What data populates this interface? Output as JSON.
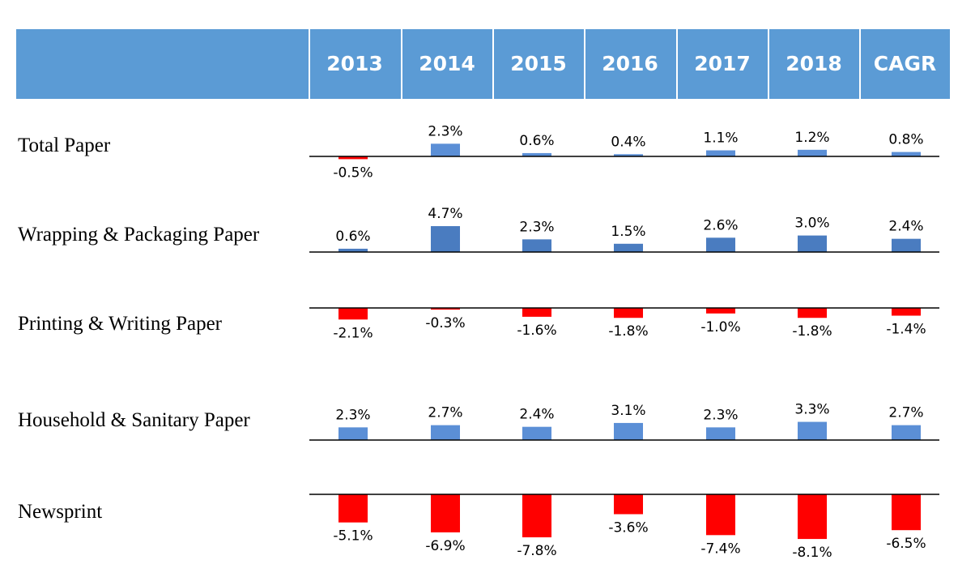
{
  "chart_data": {
    "type": "bar",
    "categories": [
      "2013",
      "2014",
      "2015",
      "2016",
      "2017",
      "2018",
      "CAGR"
    ],
    "series": [
      {
        "name": "Total Paper",
        "values": [
          -0.5,
          2.3,
          0.6,
          0.4,
          1.1,
          1.2,
          0.8
        ],
        "labels": [
          "-0.5%",
          "2.3%",
          "0.6%",
          "0.4%",
          "1.1%",
          "1.2%",
          "0.8%"
        ]
      },
      {
        "name": "Wrapping & Packaging Paper",
        "values": [
          0.6,
          4.7,
          2.3,
          1.5,
          2.6,
          3.0,
          2.4
        ],
        "labels": [
          "0.6%",
          "4.7%",
          "2.3%",
          "1.5%",
          "2.6%",
          "3.0%",
          "2.4%"
        ]
      },
      {
        "name": "Printing & Writing Paper",
        "values": [
          -2.1,
          -0.3,
          -1.6,
          -1.8,
          -1.0,
          -1.8,
          -1.4
        ],
        "labels": [
          "-2.1%",
          "-0.3%",
          "-1.6%",
          "-1.8%",
          "-1.0%",
          "-1.8%",
          "-1.4%"
        ]
      },
      {
        "name": "Household & Sanitary Paper",
        "values": [
          2.3,
          2.7,
          2.4,
          3.1,
          2.3,
          3.3,
          2.7
        ],
        "labels": [
          "2.3%",
          "2.7%",
          "2.4%",
          "3.1%",
          "2.3%",
          "3.3%",
          "2.7%"
        ]
      },
      {
        "name": "Newsprint",
        "values": [
          -5.1,
          -6.9,
          -7.8,
          -3.6,
          -7.4,
          -8.1,
          -6.5
        ],
        "labels": [
          "-5.1%",
          "-6.9%",
          "-7.8%",
          "-3.6%",
          "-7.4%",
          "-8.1%",
          "-6.5%"
        ]
      }
    ],
    "colors": {
      "header": "#5b9bd5",
      "positive": "#5b8fd6",
      "positive_dark": "#4a7cc0",
      "negative": "#ff0000"
    },
    "grid": false,
    "legend": "none"
  }
}
